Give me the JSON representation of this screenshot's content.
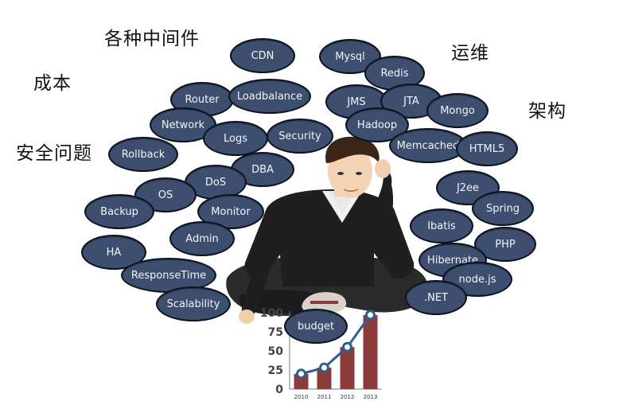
{
  "categories": {
    "middleware": "各种中间件",
    "cost": "成本",
    "security": "安全问题",
    "ops": "运维",
    "architecture": "架构"
  },
  "bubbles": [
    {
      "label": "CDN"
    },
    {
      "label": "Mysql"
    },
    {
      "label": "Redis"
    },
    {
      "label": "Router"
    },
    {
      "label": "Loadbalance"
    },
    {
      "label": "JMS"
    },
    {
      "label": "JTA"
    },
    {
      "label": "Mongo"
    },
    {
      "label": "Network"
    },
    {
      "label": "Logs"
    },
    {
      "label": "Security"
    },
    {
      "label": "Hadoop"
    },
    {
      "label": "Memcached"
    },
    {
      "label": "HTML5"
    },
    {
      "label": "Rollback"
    },
    {
      "label": "DBA"
    },
    {
      "label": "DoS"
    },
    {
      "label": "OS"
    },
    {
      "label": "Backup"
    },
    {
      "label": "Monitor"
    },
    {
      "label": "J2ee"
    },
    {
      "label": "Spring"
    },
    {
      "label": "Ibatis"
    },
    {
      "label": "Admin"
    },
    {
      "label": "HA"
    },
    {
      "label": "PHP"
    },
    {
      "label": "Hibernate"
    },
    {
      "label": "ResponseTime"
    },
    {
      "label": "node.js"
    },
    {
      "label": ".NET"
    },
    {
      "label": "Scalability"
    },
    {
      "label": "budget"
    }
  ],
  "chart_data": {
    "type": "bar",
    "categories": [
      "2010",
      "2011",
      "2012",
      "2013"
    ],
    "values": [
      20,
      28,
      55,
      97
    ],
    "line_values": [
      20,
      28,
      55,
      97
    ],
    "y_ticks": [
      "0",
      "25",
      "50",
      "75",
      "100"
    ],
    "ylim": [
      0,
      100
    ],
    "bar_color": "#8c3b3b",
    "line_color": "#2f5f8f"
  }
}
